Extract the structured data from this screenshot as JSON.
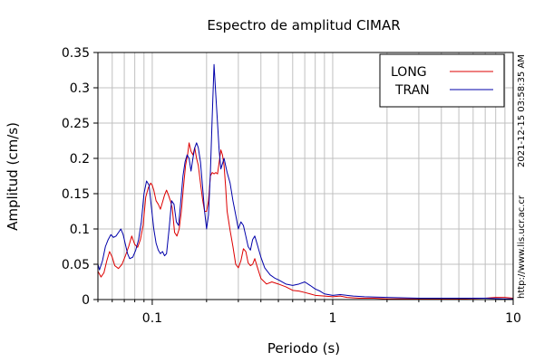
{
  "chart_data": {
    "type": "line",
    "title": "Espectro de amplitud CIMAR",
    "xlabel": "Periodo (s)",
    "ylabel": "Amplitud (cm/s)",
    "xscale": "log",
    "xlim": [
      0.05,
      10
    ],
    "ylim": [
      0,
      0.35
    ],
    "xticks": [
      {
        "value": 0.1,
        "label": "0.1"
      },
      {
        "value": 1,
        "label": "1"
      },
      {
        "value": 10,
        "label": "10"
      }
    ],
    "yticks": [
      {
        "value": 0,
        "label": "0"
      },
      {
        "value": 0.05,
        "label": "0.05"
      },
      {
        "value": 0.1,
        "label": "0.1"
      },
      {
        "value": 0.15,
        "label": "0.15"
      },
      {
        "value": 0.2,
        "label": "0.2"
      },
      {
        "value": 0.25,
        "label": "0.25"
      },
      {
        "value": 0.3,
        "label": "0.3"
      },
      {
        "value": 0.35,
        "label": "0.35"
      }
    ],
    "grid": true,
    "legend_position": "top-right",
    "timestamp": "2021-12-15 03:58:35 AM",
    "url": "http://www.lis.ucr.ac.cr",
    "series": [
      {
        "name": "LONG",
        "color": "#dd0000",
        "points": [
          [
            0.05,
            0.04
          ],
          [
            0.052,
            0.032
          ],
          [
            0.054,
            0.038
          ],
          [
            0.056,
            0.055
          ],
          [
            0.058,
            0.068
          ],
          [
            0.06,
            0.06
          ],
          [
            0.062,
            0.048
          ],
          [
            0.065,
            0.044
          ],
          [
            0.068,
            0.05
          ],
          [
            0.071,
            0.062
          ],
          [
            0.074,
            0.075
          ],
          [
            0.077,
            0.09
          ],
          [
            0.08,
            0.078
          ],
          [
            0.083,
            0.074
          ],
          [
            0.086,
            0.085
          ],
          [
            0.089,
            0.105
          ],
          [
            0.092,
            0.145
          ],
          [
            0.095,
            0.158
          ],
          [
            0.098,
            0.165
          ],
          [
            0.1,
            0.162
          ],
          [
            0.102,
            0.155
          ],
          [
            0.105,
            0.14
          ],
          [
            0.108,
            0.135
          ],
          [
            0.111,
            0.128
          ],
          [
            0.114,
            0.138
          ],
          [
            0.117,
            0.148
          ],
          [
            0.12,
            0.155
          ],
          [
            0.123,
            0.148
          ],
          [
            0.126,
            0.14
          ],
          [
            0.129,
            0.13
          ],
          [
            0.133,
            0.095
          ],
          [
            0.137,
            0.09
          ],
          [
            0.141,
            0.1
          ],
          [
            0.145,
            0.125
          ],
          [
            0.149,
            0.16
          ],
          [
            0.153,
            0.19
          ],
          [
            0.157,
            0.205
          ],
          [
            0.16,
            0.222
          ],
          [
            0.164,
            0.21
          ],
          [
            0.168,
            0.205
          ],
          [
            0.172,
            0.215
          ],
          [
            0.176,
            0.2
          ],
          [
            0.18,
            0.19
          ],
          [
            0.185,
            0.165
          ],
          [
            0.19,
            0.142
          ],
          [
            0.195,
            0.125
          ],
          [
            0.2,
            0.125
          ],
          [
            0.205,
            0.14
          ],
          [
            0.21,
            0.175
          ],
          [
            0.215,
            0.18
          ],
          [
            0.22,
            0.178
          ],
          [
            0.225,
            0.18
          ],
          [
            0.23,
            0.178
          ],
          [
            0.235,
            0.195
          ],
          [
            0.24,
            0.212
          ],
          [
            0.245,
            0.205
          ],
          [
            0.25,
            0.19
          ],
          [
            0.255,
            0.16
          ],
          [
            0.26,
            0.125
          ],
          [
            0.27,
            0.098
          ],
          [
            0.28,
            0.075
          ],
          [
            0.29,
            0.05
          ],
          [
            0.3,
            0.045
          ],
          [
            0.31,
            0.055
          ],
          [
            0.32,
            0.072
          ],
          [
            0.33,
            0.068
          ],
          [
            0.34,
            0.052
          ],
          [
            0.35,
            0.048
          ],
          [
            0.36,
            0.05
          ],
          [
            0.37,
            0.058
          ],
          [
            0.38,
            0.048
          ],
          [
            0.4,
            0.03
          ],
          [
            0.43,
            0.022
          ],
          [
            0.46,
            0.025
          ],
          [
            0.5,
            0.022
          ],
          [
            0.55,
            0.018
          ],
          [
            0.6,
            0.013
          ],
          [
            0.65,
            0.012
          ],
          [
            0.7,
            0.01
          ],
          [
            0.75,
            0.008
          ],
          [
            0.8,
            0.006
          ],
          [
            0.9,
            0.005
          ],
          [
            1.0,
            0.004
          ],
          [
            1.1,
            0.005
          ],
          [
            1.2,
            0.003
          ],
          [
            1.4,
            0.002
          ],
          [
            1.7,
            0.002
          ],
          [
            2.0,
            0.001
          ],
          [
            3.0,
            0.001
          ],
          [
            5.0,
            0.001
          ],
          [
            7.0,
            0.002
          ],
          [
            8.0,
            0.003
          ],
          [
            9.0,
            0.003
          ],
          [
            10.0,
            0.002
          ]
        ]
      },
      {
        "name": "TRAN",
        "color": "#0000aa",
        "points": [
          [
            0.05,
            0.05
          ],
          [
            0.051,
            0.042
          ],
          [
            0.053,
            0.055
          ],
          [
            0.055,
            0.075
          ],
          [
            0.057,
            0.085
          ],
          [
            0.059,
            0.092
          ],
          [
            0.061,
            0.088
          ],
          [
            0.063,
            0.09
          ],
          [
            0.065,
            0.095
          ],
          [
            0.067,
            0.1
          ],
          [
            0.069,
            0.092
          ],
          [
            0.071,
            0.078
          ],
          [
            0.073,
            0.065
          ],
          [
            0.075,
            0.058
          ],
          [
            0.078,
            0.06
          ],
          [
            0.081,
            0.07
          ],
          [
            0.084,
            0.085
          ],
          [
            0.087,
            0.11
          ],
          [
            0.09,
            0.15
          ],
          [
            0.093,
            0.168
          ],
          [
            0.096,
            0.162
          ],
          [
            0.099,
            0.13
          ],
          [
            0.102,
            0.1
          ],
          [
            0.105,
            0.08
          ],
          [
            0.108,
            0.07
          ],
          [
            0.111,
            0.065
          ],
          [
            0.114,
            0.068
          ],
          [
            0.117,
            0.062
          ],
          [
            0.12,
            0.065
          ],
          [
            0.124,
            0.1
          ],
          [
            0.128,
            0.14
          ],
          [
            0.132,
            0.135
          ],
          [
            0.136,
            0.11
          ],
          [
            0.14,
            0.105
          ],
          [
            0.144,
            0.14
          ],
          [
            0.148,
            0.175
          ],
          [
            0.152,
            0.195
          ],
          [
            0.156,
            0.205
          ],
          [
            0.16,
            0.2
          ],
          [
            0.164,
            0.182
          ],
          [
            0.168,
            0.2
          ],
          [
            0.172,
            0.215
          ],
          [
            0.176,
            0.222
          ],
          [
            0.18,
            0.215
          ],
          [
            0.185,
            0.195
          ],
          [
            0.19,
            0.16
          ],
          [
            0.195,
            0.125
          ],
          [
            0.2,
            0.1
          ],
          [
            0.205,
            0.12
          ],
          [
            0.21,
            0.18
          ],
          [
            0.215,
            0.26
          ],
          [
            0.22,
            0.333
          ],
          [
            0.225,
            0.29
          ],
          [
            0.23,
            0.25
          ],
          [
            0.235,
            0.21
          ],
          [
            0.24,
            0.185
          ],
          [
            0.25,
            0.2
          ],
          [
            0.26,
            0.18
          ],
          [
            0.27,
            0.165
          ],
          [
            0.28,
            0.14
          ],
          [
            0.29,
            0.12
          ],
          [
            0.3,
            0.1
          ],
          [
            0.31,
            0.11
          ],
          [
            0.32,
            0.105
          ],
          [
            0.33,
            0.09
          ],
          [
            0.34,
            0.075
          ],
          [
            0.35,
            0.07
          ],
          [
            0.36,
            0.085
          ],
          [
            0.37,
            0.09
          ],
          [
            0.38,
            0.08
          ],
          [
            0.4,
            0.06
          ],
          [
            0.42,
            0.045
          ],
          [
            0.45,
            0.035
          ],
          [
            0.48,
            0.03
          ],
          [
            0.5,
            0.028
          ],
          [
            0.55,
            0.022
          ],
          [
            0.6,
            0.02
          ],
          [
            0.65,
            0.022
          ],
          [
            0.7,
            0.025
          ],
          [
            0.75,
            0.02
          ],
          [
            0.8,
            0.015
          ],
          [
            0.85,
            0.012
          ],
          [
            0.9,
            0.008
          ],
          [
            1.0,
            0.006
          ],
          [
            1.1,
            0.007
          ],
          [
            1.2,
            0.006
          ],
          [
            1.3,
            0.005
          ],
          [
            1.5,
            0.004
          ],
          [
            2.0,
            0.003
          ],
          [
            3.0,
            0.002
          ],
          [
            5.0,
            0.002
          ],
          [
            7.0,
            0.002
          ],
          [
            9.0,
            0.001
          ],
          [
            10.0,
            0.001
          ]
        ]
      }
    ]
  }
}
